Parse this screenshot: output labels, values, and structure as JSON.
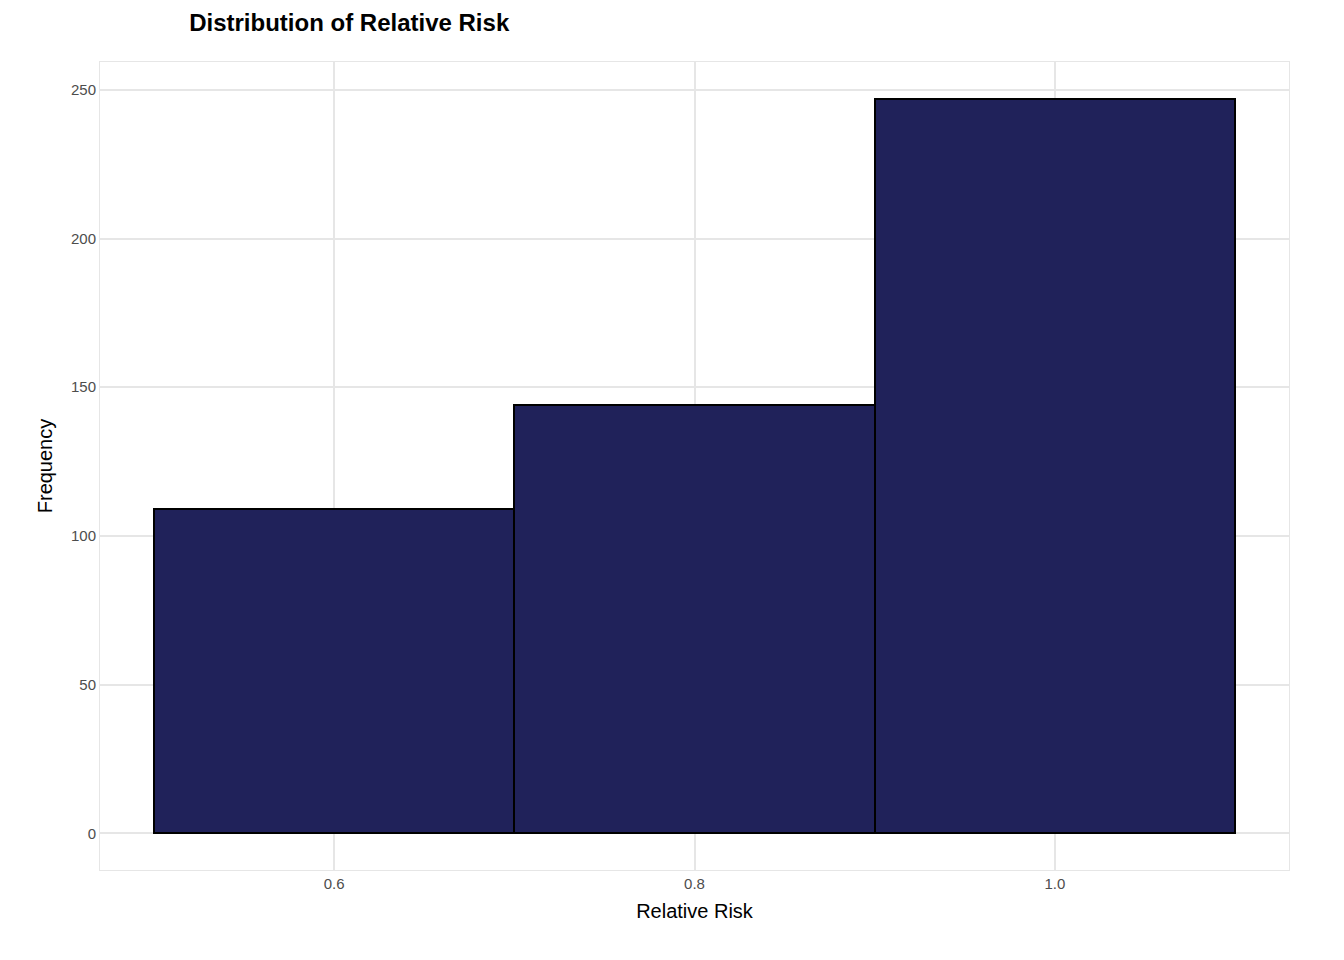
{
  "chart_data": {
    "type": "histogram",
    "title": "Distribution of Relative Risk",
    "x_label": "Relative Risk",
    "y_label": "Frequency",
    "bins": [
      0.5,
      0.7,
      0.9,
      1.1
    ],
    "values": [
      109,
      144,
      247
    ],
    "color": "#20225a",
    "xlim": [
      0.47,
      1.13
    ],
    "xticks": [
      0.6,
      0.8,
      {
        "value": 1,
        "label": "1.0"
      }
    ],
    "ylim": [
      -12.35,
      259.35
    ],
    "yticks": [
      0,
      50,
      100,
      150,
      200,
      250
    ],
    "grid": true
  }
}
